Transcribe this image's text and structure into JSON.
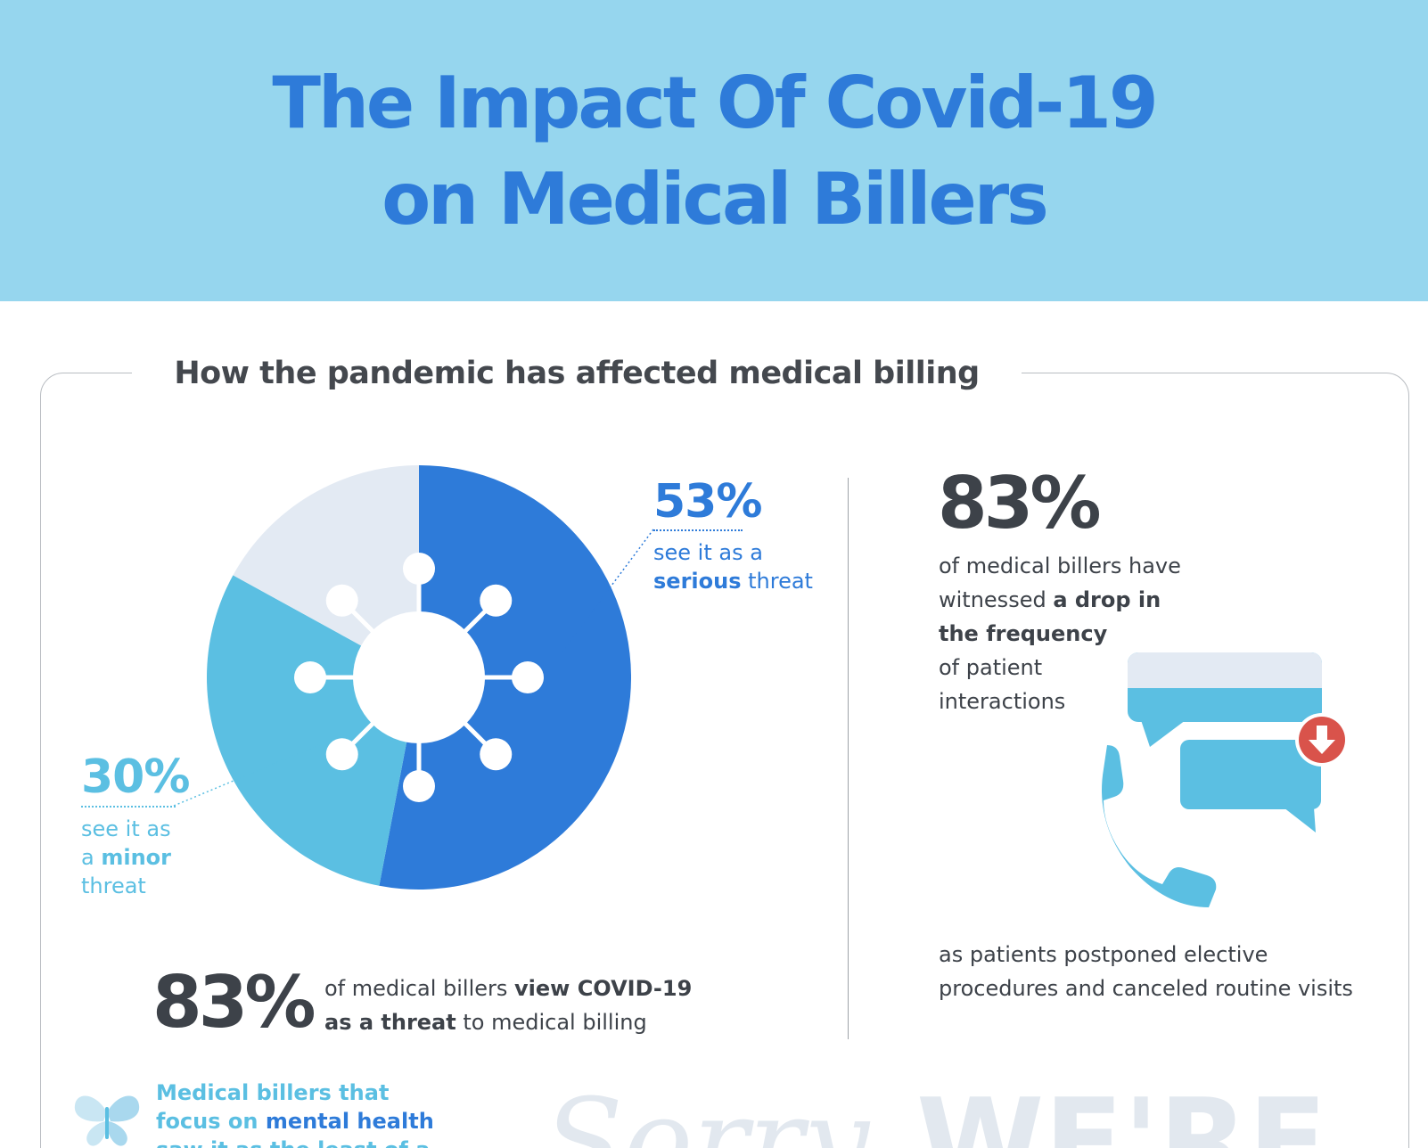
{
  "title": {
    "line1": "The Impact Of Covid-19",
    "line2": "on Medical Billers"
  },
  "section": {
    "heading": "How the pandemic has affected medical billing"
  },
  "chart_data": {
    "type": "pie",
    "style": "donut",
    "categories": [
      "serious threat",
      "minor threat",
      "other"
    ],
    "values": [
      53,
      30,
      17
    ],
    "colors": [
      "#2e7bd9",
      "#5bbfe2",
      "#e3eaf3"
    ],
    "labels": [
      {
        "value": "53%",
        "line1": "see it as a",
        "bold": "serious",
        "rest": " threat"
      },
      {
        "value": "30%",
        "line1": "see it as",
        "line2_prefix": "a ",
        "bold": "minor",
        "line3": "threat"
      }
    ],
    "center_icon": "virus-icon"
  },
  "stat_left": {
    "number": "83%",
    "line1_plain": "of medical billers ",
    "line1_bold": "view COVID-19",
    "line2_bold": "as a threat",
    "line2_plain": " to medical billing"
  },
  "stat_right": {
    "number": "83%",
    "line1": "of medical billers have",
    "line2_plain": "witnessed ",
    "line2_bold": "a drop in",
    "line3_bold": "the frequency",
    "line4": "of patient",
    "line5": "interactions",
    "foot_line1": "as patients postponed elective",
    "foot_line2": "procedures and canceled routine visits",
    "icon": "phone-chat-icon"
  },
  "mental": {
    "line1": "Medical billers that",
    "line2_plain": "focus on ",
    "line2_bold": "mental health",
    "line3": "saw it as the least of a",
    "icon": "butterfly-icon"
  },
  "watermark": {
    "script": "Sorry,",
    "caps": "WE'RE"
  }
}
